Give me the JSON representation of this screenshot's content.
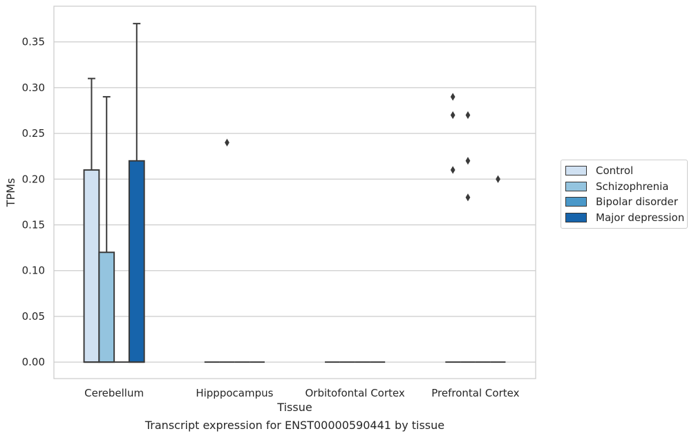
{
  "chart_data": {
    "type": "box",
    "title": "",
    "caption": "Transcript expression for ENST00000590441 by tissue",
    "xlabel": "Tissue",
    "ylabel": "TPMs",
    "ylim": [
      -0.018,
      0.389
    ],
    "yticks": [
      "0.00",
      "0.05",
      "0.10",
      "0.15",
      "0.20",
      "0.25",
      "0.30",
      "0.35"
    ],
    "ytick_values": [
      0,
      0.05,
      0.1,
      0.15,
      0.2,
      0.25,
      0.3,
      0.35
    ],
    "grid": true,
    "legend_position": "right",
    "categories": [
      "Cerebellum",
      "Hipppocampus",
      "Orbitofontal Cortex",
      "Prefrontal Cortex"
    ],
    "series": [
      {
        "name": "Control",
        "color": "#d0e1f2",
        "boxes": [
          {
            "q1": 0,
            "median": 0,
            "q3": 0.21,
            "whisker_low": 0,
            "whisker_high": 0.31,
            "outliers": []
          },
          {
            "q1": 0,
            "median": 0,
            "q3": 0,
            "whisker_low": 0,
            "whisker_high": 0,
            "outliers": []
          },
          {
            "q1": 0,
            "median": 0,
            "q3": 0,
            "whisker_low": 0,
            "whisker_high": 0,
            "outliers": []
          },
          {
            "q1": 0,
            "median": 0,
            "q3": 0,
            "whisker_low": 0,
            "whisker_high": 0,
            "outliers": [
              0.21,
              0.27,
              0.29
            ]
          }
        ]
      },
      {
        "name": "Schizophrenia",
        "color": "#94c4df",
        "boxes": [
          {
            "q1": 0,
            "median": 0,
            "q3": 0.12,
            "whisker_low": 0,
            "whisker_high": 0.29,
            "outliers": []
          },
          {
            "q1": 0,
            "median": 0,
            "q3": 0,
            "whisker_low": 0,
            "whisker_high": 0,
            "outliers": [
              0.24
            ]
          },
          {
            "q1": 0,
            "median": 0,
            "q3": 0,
            "whisker_low": 0,
            "whisker_high": 0,
            "outliers": []
          },
          {
            "q1": 0,
            "median": 0,
            "q3": 0,
            "whisker_low": 0,
            "whisker_high": 0,
            "outliers": [
              0.18,
              0.22,
              0.27
            ]
          }
        ]
      },
      {
        "name": "Bipolar disorder",
        "color": "#4a98c9",
        "boxes": [
          {
            "q1": 0,
            "median": 0,
            "q3": 0,
            "whisker_low": 0,
            "whisker_high": 0,
            "outliers": []
          },
          {
            "q1": 0,
            "median": 0,
            "q3": 0,
            "whisker_low": 0,
            "whisker_high": 0,
            "outliers": []
          },
          {
            "q1": 0,
            "median": 0,
            "q3": 0,
            "whisker_low": 0,
            "whisker_high": 0,
            "outliers": []
          },
          {
            "q1": 0,
            "median": 0,
            "q3": 0,
            "whisker_low": 0,
            "whisker_high": 0,
            "outliers": []
          }
        ]
      },
      {
        "name": "Major depression",
        "color": "#1764ab",
        "boxes": [
          {
            "q1": 0,
            "median": 0,
            "q3": 0.22,
            "whisker_low": 0,
            "whisker_high": 0.37,
            "outliers": []
          },
          {
            "q1": 0,
            "median": 0,
            "q3": 0,
            "whisker_low": 0,
            "whisker_high": 0,
            "outliers": []
          },
          {
            "q1": 0,
            "median": 0,
            "q3": 0,
            "whisker_low": 0,
            "whisker_high": 0,
            "outliers": []
          },
          {
            "q1": 0,
            "median": 0,
            "q3": 0,
            "whisker_low": 0,
            "whisker_high": 0,
            "outliers": [
              0.2
            ]
          }
        ]
      }
    ]
  }
}
